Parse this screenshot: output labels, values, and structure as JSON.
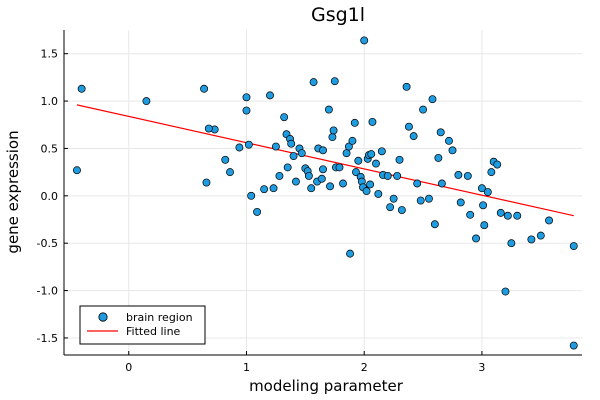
{
  "chart_data": {
    "type": "scatter",
    "title": "Gsg1l",
    "xlabel": "modeling parameter",
    "ylabel": "gene expression",
    "xlim": [
      -0.55,
      3.85
    ],
    "ylim": [
      -1.68,
      1.75
    ],
    "xticks": [
      0,
      1,
      2,
      3
    ],
    "yticks": [
      -1.5,
      -1.0,
      -0.5,
      0.0,
      0.5,
      1.0,
      1.5
    ],
    "xtick_labels": [
      "0",
      "1",
      "2",
      "3"
    ],
    "ytick_labels": [
      "-1.5",
      "-1.0",
      "-0.5",
      "0.0",
      "0.5",
      "1.0",
      "1.5"
    ],
    "grid": true,
    "legend_position": "bottom-left",
    "colors": {
      "points": "#1f9be0",
      "points_edge": "#000000",
      "line": "#ff0000",
      "grid": "#e8e8e8"
    },
    "series": [
      {
        "name": "brain region",
        "kind": "scatter",
        "x": [
          -0.44,
          -0.4,
          0.15,
          0.64,
          0.66,
          0.73,
          0.68,
          0.82,
          0.86,
          0.94,
          1.0,
          1.0,
          1.02,
          1.04,
          1.09,
          1.15,
          1.2,
          1.23,
          1.25,
          1.28,
          1.32,
          1.34,
          1.35,
          1.37,
          1.38,
          1.4,
          1.42,
          1.45,
          1.47,
          1.5,
          1.52,
          1.53,
          1.55,
          1.57,
          1.6,
          1.61,
          1.64,
          1.65,
          1.65,
          1.7,
          1.71,
          1.73,
          1.74,
          1.75,
          1.76,
          1.79,
          1.82,
          1.85,
          1.87,
          1.88,
          1.9,
          1.92,
          1.93,
          1.95,
          1.97,
          1.98,
          1.99,
          2.0,
          2.02,
          2.03,
          2.04,
          2.05,
          2.06,
          2.07,
          2.1,
          2.12,
          2.15,
          2.16,
          2.2,
          2.22,
          2.25,
          2.28,
          2.3,
          2.32,
          2.36,
          2.38,
          2.42,
          2.45,
          2.48,
          2.5,
          2.55,
          2.58,
          2.6,
          2.63,
          2.65,
          2.66,
          2.72,
          2.75,
          2.8,
          2.82,
          2.88,
          2.9,
          2.95,
          3.0,
          3.01,
          3.02,
          3.05,
          3.08,
          3.1,
          3.13,
          3.16,
          3.2,
          3.22,
          3.25,
          3.3,
          3.42,
          3.5,
          3.57,
          3.78,
          3.78
        ],
        "y": [
          0.27,
          1.13,
          1.0,
          1.13,
          0.14,
          0.7,
          0.71,
          0.38,
          0.25,
          0.51,
          0.9,
          1.04,
          0.54,
          0.0,
          -0.17,
          0.07,
          1.06,
          0.08,
          0.52,
          0.21,
          0.83,
          0.65,
          0.3,
          0.6,
          0.55,
          0.42,
          0.15,
          0.5,
          0.45,
          0.29,
          0.26,
          0.21,
          0.08,
          1.2,
          0.15,
          0.5,
          0.18,
          0.28,
          0.48,
          0.91,
          0.1,
          0.62,
          0.69,
          1.21,
          0.3,
          0.3,
          0.13,
          0.45,
          0.52,
          -0.61,
          0.58,
          0.77,
          0.25,
          0.37,
          0.2,
          0.15,
          0.09,
          1.64,
          0.05,
          0.39,
          0.43,
          0.12,
          0.44,
          0.78,
          0.34,
          0.02,
          0.47,
          0.22,
          0.21,
          -0.12,
          -0.03,
          0.21,
          0.38,
          -0.15,
          1.15,
          0.73,
          0.63,
          0.13,
          -0.05,
          0.91,
          -0.03,
          1.02,
          -0.3,
          0.4,
          0.67,
          0.13,
          0.58,
          0.48,
          0.22,
          -0.07,
          0.21,
          -0.2,
          -0.45,
          0.08,
          -0.1,
          -0.31,
          0.04,
          0.25,
          0.36,
          0.33,
          -0.18,
          -1.01,
          -0.21,
          -0.5,
          -0.21,
          -0.46,
          -0.42,
          -0.26,
          -0.53,
          -1.58
        ],
        "y_fix_note": ""
      },
      {
        "name": "Fitted line",
        "kind": "line",
        "x": [
          -0.44,
          3.78
        ],
        "y": [
          0.96,
          -0.21
        ]
      }
    ]
  }
}
